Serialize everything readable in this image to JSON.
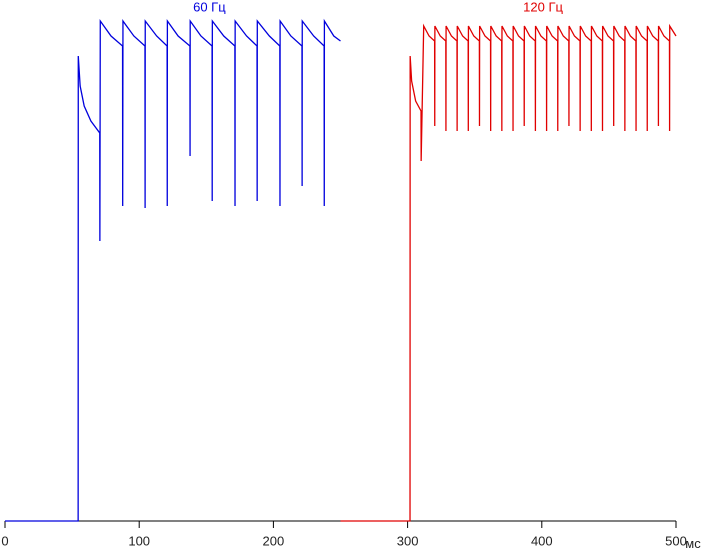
{
  "chart_data": {
    "type": "line",
    "x_label": "мс",
    "xlim": [
      0,
      500
    ],
    "xticks": [
      0,
      100,
      200,
      300,
      400,
      500
    ],
    "ylim": [
      0,
      100
    ],
    "series": [
      {
        "name": "60 Гц",
        "color": "#0000dd",
        "x": [
          0,
          54.5,
          54.6,
          56,
          59,
          64,
          70.6,
          70.7,
          71,
          79,
          87.6,
          87.7,
          87.9,
          96,
          104.3,
          104.4,
          104.5,
          113,
          120.8,
          120.9,
          121,
          129,
          137.8,
          137.9,
          138,
          146,
          154.3,
          154.4,
          154.5,
          163,
          171.3,
          171.4,
          171.5,
          180,
          187.8,
          187.9,
          188,
          197,
          204.8,
          204.9,
          205,
          213,
          221.3,
          221.4,
          221.5,
          230,
          237.8,
          237.9,
          238,
          245,
          250
        ],
        "values": [
          0,
          0,
          93,
          87,
          83,
          80,
          77.6,
          56,
          100,
          97,
          95,
          63,
          100,
          97,
          95,
          62.6,
          100,
          97,
          95,
          63,
          100,
          97,
          95,
          73,
          100,
          97,
          95,
          64,
          100,
          97,
          95,
          63,
          100,
          97,
          95,
          64,
          100,
          97,
          95,
          63,
          100,
          97,
          95,
          67,
          100,
          97,
          95,
          63,
          100,
          97,
          96
        ]
      },
      {
        "name": "120 Гц",
        "color": "#e00000",
        "x": [
          250,
          301.8,
          301.9,
          303,
          306,
          310,
          310.1,
          312,
          316,
          320.13,
          320.23,
          320.33,
          324.33,
          328.47,
          328.57,
          328.67,
          332.67,
          336.8,
          336.9,
          337,
          341,
          345.13,
          345.23,
          345.33,
          349.33,
          353.47,
          353.57,
          353.67,
          357.67,
          361.8,
          361.9,
          362,
          366,
          370.13,
          370.23,
          370.33,
          374.33,
          378.47,
          378.57,
          378.67,
          382.67,
          386.8,
          386.9,
          387,
          391,
          395.13,
          395.23,
          395.33,
          399.33,
          403.47,
          403.57,
          403.67,
          407.67,
          411.8,
          411.9,
          412,
          416,
          420.13,
          420.23,
          420.33,
          424.33,
          428.47,
          428.57,
          428.67,
          432.67,
          436.8,
          436.9,
          437,
          441,
          445.13,
          445.23,
          445.33,
          449.33,
          453.47,
          453.57,
          453.67,
          457.67,
          461.8,
          461.9,
          462,
          466,
          470.13,
          470.23,
          470.33,
          474.33,
          478.47,
          478.57,
          478.67,
          482.67,
          486.8,
          486.9,
          487,
          491,
          495.13,
          495.23,
          495.33,
          500
        ],
        "values": [
          0,
          0,
          93,
          88,
          84,
          82,
          72,
          99,
          97,
          96,
          79,
          99,
          97,
          96,
          78,
          99,
          97,
          96,
          78,
          99,
          97,
          96,
          78,
          99,
          97,
          96,
          79,
          99,
          97,
          96,
          78,
          99,
          97,
          96,
          78,
          99,
          97,
          96,
          78,
          99,
          97,
          96,
          79,
          99,
          97,
          96,
          78,
          99,
          97,
          96,
          78,
          99,
          97,
          96,
          78,
          99,
          97,
          96,
          79,
          99,
          97,
          96,
          78,
          99,
          97,
          96,
          78,
          99,
          97,
          96,
          78,
          99,
          97,
          96,
          79,
          99,
          97,
          96,
          78,
          99,
          97,
          96,
          78,
          99,
          97,
          96,
          78,
          99,
          97,
          96,
          79,
          99,
          97,
          96,
          78,
          99,
          97
        ]
      }
    ]
  }
}
